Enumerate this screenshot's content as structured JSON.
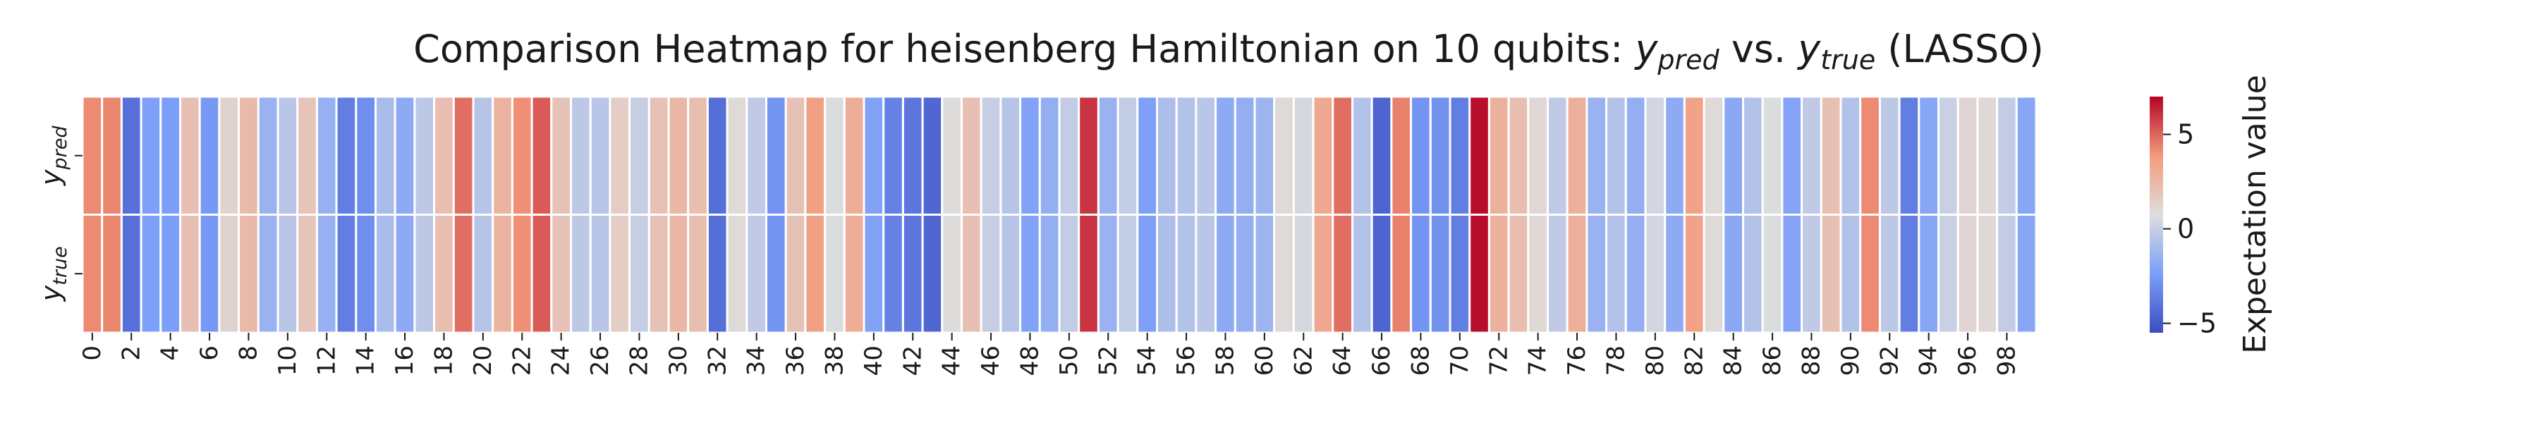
{
  "chart_data": {
    "type": "heatmap",
    "title": "Comparison Heatmap for heisenberg Hamiltonian on 10 qubits: ",
    "title_mid": " vs. ",
    "title_end": " (LASSO)",
    "title_pred_base": "y",
    "title_pred_sub": "pred",
    "title_true_base": "y",
    "title_true_sub": "true",
    "rows": [
      {
        "base": "y",
        "sub": "pred"
      },
      {
        "base": "y",
        "sub": "true"
      }
    ],
    "x_ticks": [
      "0",
      "2",
      "4",
      "6",
      "8",
      "10",
      "12",
      "14",
      "16",
      "18",
      "20",
      "22",
      "24",
      "26",
      "28",
      "30",
      "32",
      "34",
      "36",
      "38",
      "40",
      "42",
      "44",
      "46",
      "48",
      "50",
      "52",
      "54",
      "56",
      "58",
      "60",
      "62",
      "64",
      "66",
      "68",
      "70",
      "72",
      "74",
      "76",
      "78",
      "80",
      "82",
      "84",
      "86",
      "88",
      "90",
      "92",
      "94",
      "96",
      "98"
    ],
    "values": [
      4.2,
      4.3,
      -4.1,
      -2.3,
      -2.4,
      2.1,
      -2.6,
      1.2,
      2.4,
      -1.4,
      -0.4,
      1.9,
      -1.5,
      -3.6,
      -3.0,
      -0.9,
      -1.8,
      -0.3,
      2.2,
      4.8,
      -0.5,
      2.7,
      4.1,
      5.2,
      2.0,
      -0.3,
      -0.4,
      1.5,
      0.0,
      2.0,
      2.5,
      2.2,
      -4.2,
      0.9,
      -0.2,
      -2.8,
      2.0,
      3.6,
      0.7,
      3.0,
      -2.2,
      -3.5,
      -3.9,
      -4.5,
      0.8,
      2.1,
      0.0,
      -0.5,
      -2.2,
      -1.6,
      -0.1,
      6.0,
      -1.4,
      -0.1,
      -2.3,
      -0.8,
      -0.6,
      -0.4,
      -1.8,
      -1.6,
      -1.3,
      0.9,
      0.5,
      3.2,
      4.8,
      -0.6,
      -4.6,
      4.4,
      -2.8,
      -2.9,
      -3.6,
      6.8,
      2.8,
      2.2,
      1.0,
      -0.2,
      2.9,
      -1.4,
      -0.6,
      -1.6,
      0.4,
      -1.8,
      3.5,
      0.9,
      -1.9,
      -0.6,
      0.7,
      -2.1,
      -0.2,
      2.1,
      -0.6,
      4.2,
      -0.3,
      -3.6,
      -2.0,
      0.1,
      1.1,
      1.0,
      -0.1,
      -2.0
    ],
    "colormap": "coolwarm",
    "vmin": -5.5,
    "vmax": 7.0,
    "colorbar": {
      "label": "Expectation value",
      "ticks": [
        5,
        0,
        -5
      ],
      "tick_labels": [
        "5",
        "0",
        "−5"
      ]
    }
  }
}
